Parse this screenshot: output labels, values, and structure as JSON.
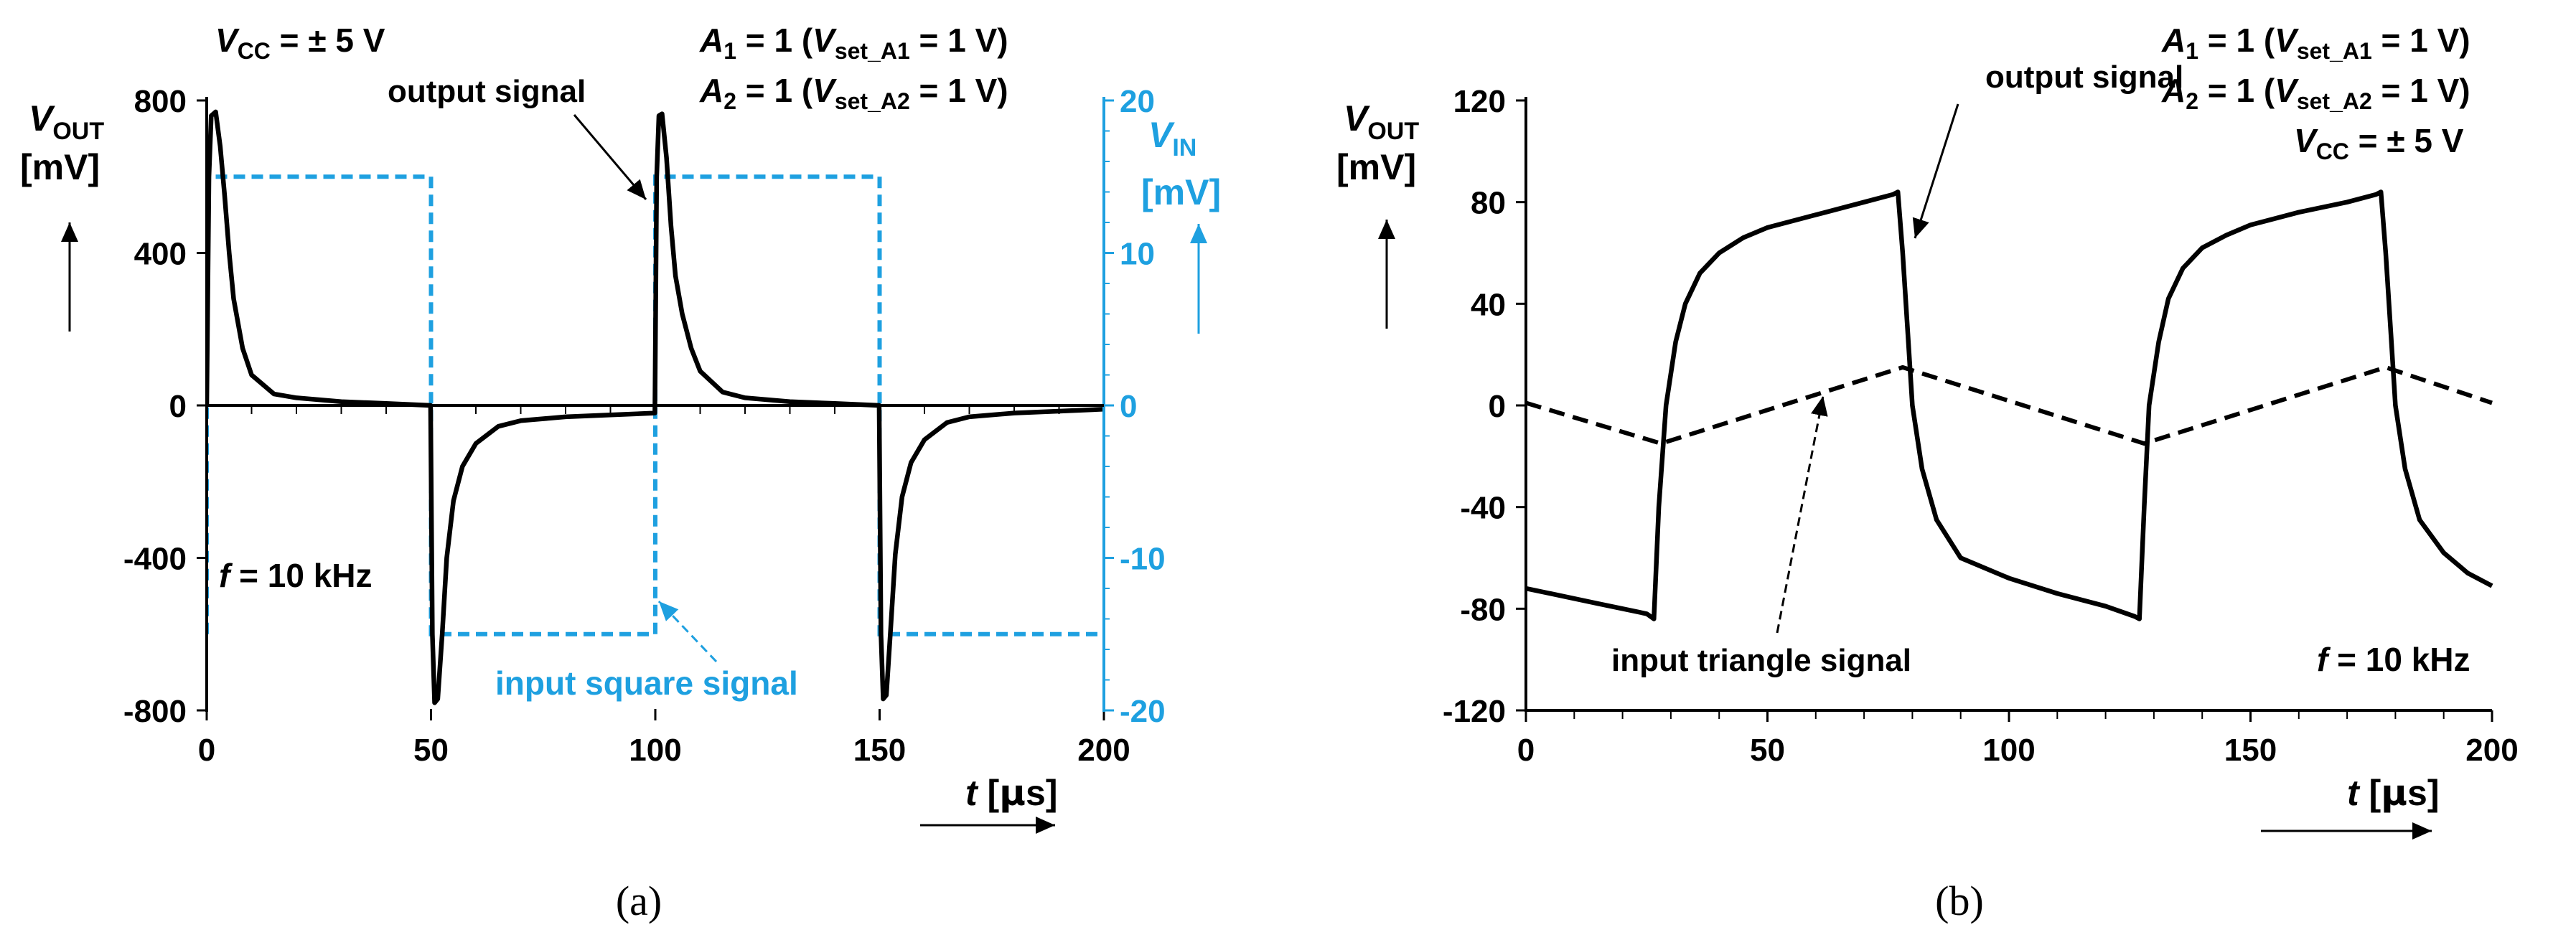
{
  "panel_labels": {
    "a": "(a)",
    "b": "(b)"
  },
  "chart_data": [
    {
      "type": "line",
      "panel": "a",
      "title": "",
      "xlabel": {
        "var": "t",
        "unit_prefix": "μ",
        "unit": "s",
        "bracket_open": " [",
        "bracket_close": "]"
      },
      "ylabel": {
        "var": "V",
        "sub": "OUT",
        "unit": "[mV]"
      },
      "y2label": {
        "var": "V",
        "sub": "IN",
        "unit": "[mV]"
      },
      "xlim": [
        0,
        200
      ],
      "ylim": [
        -800,
        800
      ],
      "y2lim": [
        -20,
        20
      ],
      "x_ticks": [
        0,
        50,
        100,
        150,
        200
      ],
      "y_ticks": [
        -800,
        -400,
        0,
        400,
        800
      ],
      "y2_ticks": [
        -20,
        -10,
        0,
        10,
        20
      ],
      "colors": {
        "output": "#000000",
        "input": "#1ea0e0",
        "axis": "#000000",
        "axis2": "#1ea0e0"
      },
      "annotations": {
        "vcc": {
          "var": "V",
          "sub": "CC",
          "text": " = ± 5 V"
        },
        "a1": {
          "var": "A",
          "sub": "1",
          "mid": " = 1 (",
          "var2": "V",
          "sub2": "set_A1",
          "end": " = 1 V)"
        },
        "a2": {
          "var": "A",
          "sub": "2",
          "mid": " = 1 (",
          "var2": "V",
          "sub2": "set_A2",
          "end": " = 1 V)"
        },
        "freq": {
          "var": "f",
          "text": " = 10 kHz"
        },
        "output_label": "output signal",
        "input_label": "input square signal"
      },
      "series": [
        {
          "name": "output signal",
          "axis": "left",
          "style": "solid",
          "x": [
            0,
            0.5,
            1,
            2,
            3,
            4,
            5,
            6,
            8,
            10,
            15,
            20,
            30,
            40,
            49.9,
            50.3,
            50.8,
            51.5,
            52.5,
            53.5,
            55,
            57,
            60,
            65,
            70,
            80,
            90,
            99.9,
            100.3,
            100.8,
            101.5,
            102.5,
            103.5,
            104.5,
            106,
            108,
            110,
            115,
            120,
            130,
            140,
            149.9,
            150.3,
            150.8,
            151.5,
            152.5,
            153.5,
            155,
            157,
            160,
            165,
            170,
            180,
            190,
            200
          ],
          "y": [
            0,
            600,
            760,
            770,
            680,
            550,
            400,
            280,
            150,
            80,
            30,
            20,
            10,
            5,
            0,
            -600,
            -780,
            -770,
            -600,
            -400,
            -250,
            -160,
            -100,
            -55,
            -40,
            -30,
            -25,
            -20,
            600,
            760,
            765,
            650,
            470,
            340,
            240,
            150,
            90,
            35,
            20,
            10,
            5,
            0,
            -600,
            -770,
            -760,
            -580,
            -390,
            -240,
            -150,
            -90,
            -45,
            -30,
            -20,
            -15,
            -10
          ]
        },
        {
          "name": "input square signal",
          "axis": "right",
          "style": "dashed",
          "x": [
            0,
            0,
            50,
            50,
            100,
            100,
            150,
            150,
            200
          ],
          "y": [
            -15,
            15,
            15,
            -15,
            -15,
            15,
            15,
            -15,
            -15
          ]
        }
      ]
    },
    {
      "type": "line",
      "panel": "b",
      "title": "",
      "xlabel": {
        "var": "t",
        "unit_prefix": "μ",
        "unit": "s",
        "bracket_open": " [",
        "bracket_close": "]"
      },
      "ylabel": {
        "var": "V",
        "sub": "OUT",
        "unit": "[mV]"
      },
      "xlim": [
        0,
        200
      ],
      "ylim": [
        -120,
        120
      ],
      "x_ticks": [
        0,
        50,
        100,
        150,
        200
      ],
      "y_ticks": [
        -120,
        -80,
        -40,
        0,
        40,
        80,
        120
      ],
      "colors": {
        "output": "#000000",
        "input": "#000000",
        "axis": "#000000"
      },
      "annotations": {
        "vcc": {
          "var": "V",
          "sub": "CC",
          "text": " = ± 5 V"
        },
        "a1": {
          "var": "A",
          "sub": "1",
          "mid": " = 1 (",
          "var2": "V",
          "sub2": "set_A1",
          "end": " = 1 V)"
        },
        "a2": {
          "var": "A",
          "sub": "2",
          "mid": " = 1 (",
          "var2": "V",
          "sub2": "set_A2",
          "end": " = 1 V)"
        },
        "freq": {
          "var": "f",
          "text": " = 10 kHz"
        },
        "output_label": "output signal",
        "input_label": "input triangle signal"
      },
      "series": [
        {
          "name": "output signal",
          "style": "solid",
          "x": [
            0,
            5,
            10,
            15,
            20,
            25,
            26.5,
            27.5,
            29,
            31,
            33,
            36,
            40,
            45,
            50,
            60,
            70,
            76,
            77,
            78,
            79,
            80,
            82,
            85,
            90,
            100,
            110,
            120,
            126,
            127,
            128,
            129,
            131,
            133,
            136,
            140,
            145,
            150,
            160,
            170,
            176,
            177,
            178,
            179,
            180,
            182,
            185,
            190,
            195,
            200
          ],
          "y": [
            -72,
            -74,
            -76,
            -78,
            -80,
            -82,
            -84,
            -40,
            0,
            25,
            40,
            52,
            60,
            66,
            70,
            75,
            80,
            83,
            84,
            60,
            30,
            0,
            -25,
            -45,
            -60,
            -68,
            -74,
            -79,
            -83,
            -84,
            -40,
            0,
            25,
            42,
            54,
            62,
            67,
            71,
            76,
            80,
            83,
            84,
            60,
            30,
            0,
            -25,
            -45,
            -58,
            -66,
            -71
          ]
        },
        {
          "name": "input triangle signal",
          "style": "dashed",
          "x": [
            0,
            28,
            78,
            128,
            178,
            200
          ],
          "y": [
            1,
            -15,
            15,
            -15,
            15,
            1
          ]
        }
      ]
    }
  ]
}
